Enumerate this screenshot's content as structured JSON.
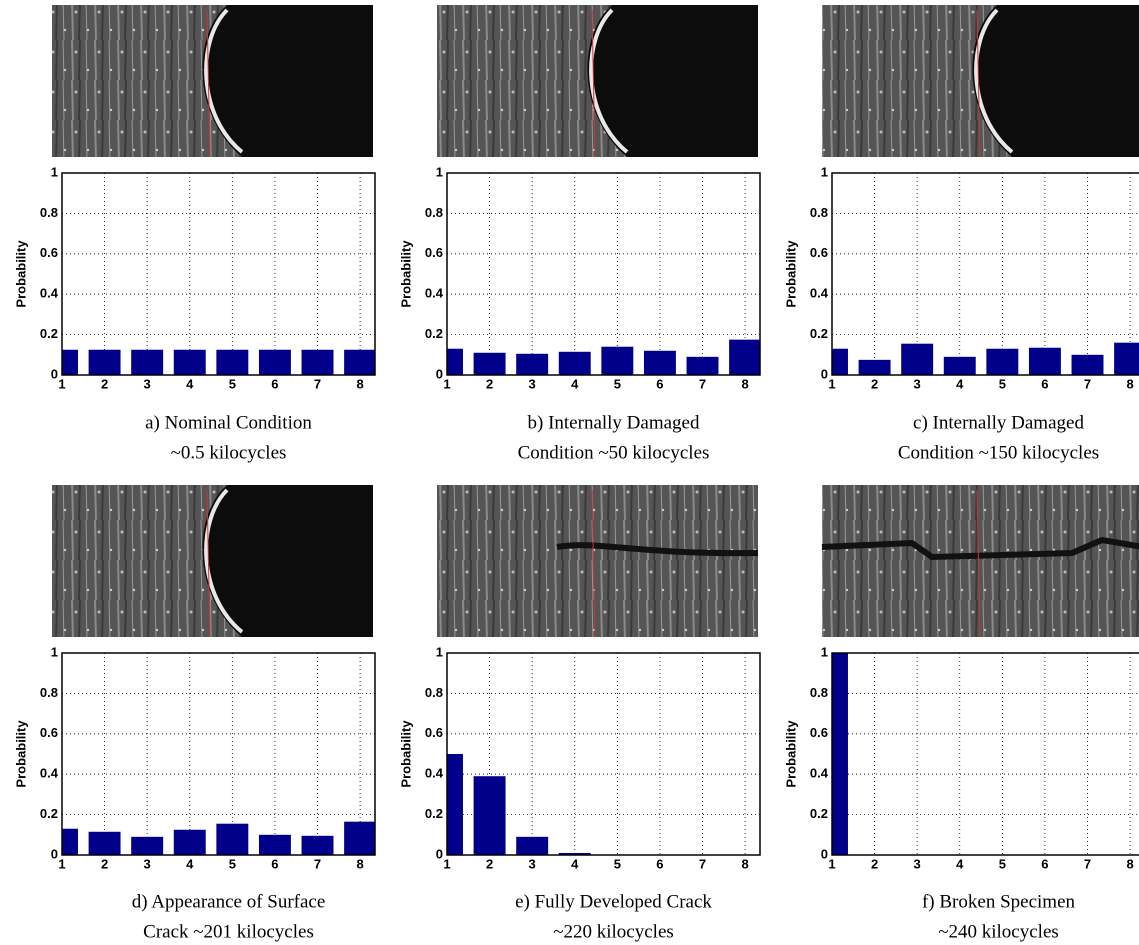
{
  "chart_data": [
    {
      "type": "bar",
      "caption": [
        "a) Nominal Condition",
        "~0.5 kilocycles"
      ],
      "ylabel": "Probability",
      "x": [
        1,
        2,
        3,
        4,
        5,
        6,
        7,
        8
      ],
      "values": [
        0.125,
        0.125,
        0.125,
        0.125,
        0.125,
        0.125,
        0.125,
        0.125
      ],
      "color": "#00008b",
      "xlim": [
        1,
        8.35
      ],
      "ylim": [
        0,
        1
      ],
      "xticks": [
        1,
        2,
        3,
        4,
        5,
        6,
        7,
        8
      ],
      "yticks": [
        0,
        0.2,
        0.4,
        0.6,
        0.8,
        1
      ],
      "grid": true
    },
    {
      "type": "bar",
      "caption": [
        "b) Internally Damaged",
        "Condition ~50 kilocycles"
      ],
      "ylabel": "Probability",
      "x": [
        1,
        2,
        3,
        4,
        5,
        6,
        7,
        8
      ],
      "values": [
        0.13,
        0.11,
        0.105,
        0.115,
        0.14,
        0.12,
        0.09,
        0.175
      ],
      "color": "#00008b",
      "xlim": [
        1,
        8.35
      ],
      "ylim": [
        0,
        1
      ],
      "xticks": [
        1,
        2,
        3,
        4,
        5,
        6,
        7,
        8
      ],
      "yticks": [
        0,
        0.2,
        0.4,
        0.6,
        0.8,
        1
      ],
      "grid": true
    },
    {
      "type": "bar",
      "caption": [
        "c) Internally Damaged",
        "Condition ~150 kilocycles"
      ],
      "ylabel": "Probability",
      "x": [
        1,
        2,
        3,
        4,
        5,
        6,
        7,
        8
      ],
      "values": [
        0.13,
        0.075,
        0.155,
        0.09,
        0.13,
        0.135,
        0.1,
        0.16
      ],
      "color": "#00008b",
      "xlim": [
        1,
        8.35
      ],
      "ylim": [
        0,
        1
      ],
      "xticks": [
        1,
        2,
        3,
        4,
        5,
        6,
        7,
        8
      ],
      "yticks": [
        0,
        0.2,
        0.4,
        0.6,
        0.8,
        1
      ],
      "grid": true
    },
    {
      "type": "bar",
      "caption": [
        "d) Appearance of Surface",
        "Crack ~201 kilocycles"
      ],
      "ylabel": "Probability",
      "x": [
        1,
        2,
        3,
        4,
        5,
        6,
        7,
        8
      ],
      "values": [
        0.13,
        0.115,
        0.09,
        0.125,
        0.155,
        0.1,
        0.095,
        0.165
      ],
      "color": "#00008b",
      "xlim": [
        1,
        8.35
      ],
      "ylim": [
        0,
        1
      ],
      "xticks": [
        1,
        2,
        3,
        4,
        5,
        6,
        7,
        8
      ],
      "yticks": [
        0,
        0.2,
        0.4,
        0.6,
        0.8,
        1
      ],
      "grid": true
    },
    {
      "type": "bar",
      "caption": [
        "e) Fully Developed Crack",
        "~220 kilocycles"
      ],
      "ylabel": "Probability",
      "x": [
        1,
        2,
        3,
        4,
        5,
        6,
        7,
        8
      ],
      "values": [
        0.5,
        0.39,
        0.09,
        0.01,
        0,
        0,
        0,
        0
      ],
      "color": "#00008b",
      "xlim": [
        1,
        8.35
      ],
      "ylim": [
        0,
        1
      ],
      "xticks": [
        1,
        2,
        3,
        4,
        5,
        6,
        7,
        8
      ],
      "yticks": [
        0,
        0.2,
        0.4,
        0.6,
        0.8,
        1
      ],
      "grid": true
    },
    {
      "type": "bar",
      "caption": [
        "f) Broken Specimen",
        "~240 kilocycles"
      ],
      "ylabel": "Probability",
      "x": [
        1,
        2,
        3,
        4,
        5,
        6,
        7,
        8
      ],
      "values": [
        1,
        0,
        0,
        0,
        0,
        0,
        0,
        0
      ],
      "color": "#00008b",
      "xlim": [
        1,
        8.35
      ],
      "ylim": [
        0,
        1
      ],
      "xticks": [
        1,
        2,
        3,
        4,
        5,
        6,
        7,
        8
      ],
      "yticks": [
        0,
        0.2,
        0.4,
        0.6,
        0.8,
        1
      ],
      "grid": true
    }
  ]
}
